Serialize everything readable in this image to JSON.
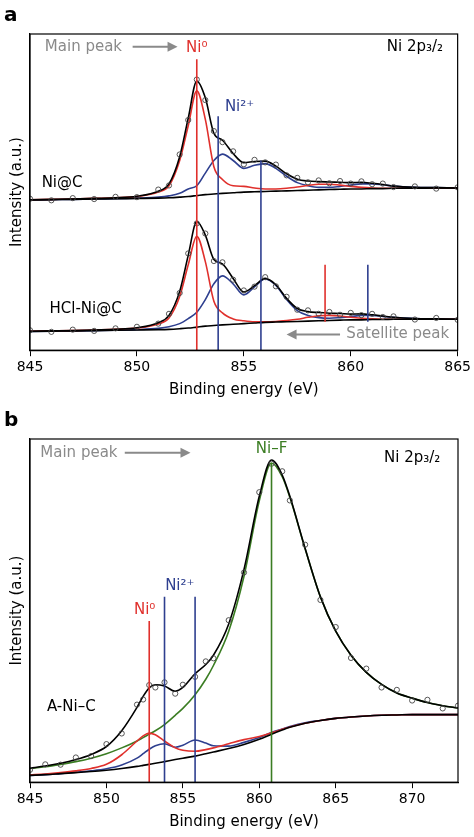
{
  "chart_data": [
    {
      "type": "line",
      "title": "a",
      "x_label": "Binding energy (eV)",
      "y_label": "Intensity (a.u.)",
      "x": [
        845,
        846,
        847,
        848,
        849,
        850,
        851,
        851.5,
        852,
        852.4,
        852.8,
        853.2,
        853.6,
        854,
        854.5,
        855,
        855.5,
        856,
        856.5,
        857,
        857.5,
        858,
        858.5,
        859,
        859.5,
        860,
        860.5,
        861,
        861.5,
        862,
        863,
        864,
        865
      ],
      "xlim": [
        845,
        865
      ],
      "xticks": [
        845,
        850,
        855,
        860,
        865
      ],
      "ylim": [
        0,
        100
      ],
      "tick_labels": "x",
      "grid": false,
      "series": [
        {
          "type": "scatter",
          "marker": "circle",
          "color": "#444444",
          "values": [
            47.9,
            47.4,
            48.1,
            47.8,
            48.5,
            48.4,
            50.8,
            52.1,
            61.9,
            72.8,
            85.6,
            79.1,
            69.3,
            65.8,
            62.9,
            58.8,
            60.2,
            59.4,
            58.7,
            55.3,
            54.5,
            53.1,
            53.7,
            52.8,
            53.5,
            52.7,
            53.4,
            52.5,
            52.7,
            51.6,
            51.8,
            51.1,
            51.5
          ]
        },
        {
          "type": "line",
          "line_style": "solid",
          "color": "#000000",
          "values": [
            47.6,
            47.7,
            47.8,
            48,
            48.2,
            48.7,
            50.3,
            52.6,
            61.2,
            73.4,
            85.1,
            79.8,
            68.6,
            66.4,
            62.2,
            59.3,
            59.7,
            59.8,
            58.2,
            55.8,
            54.1,
            53.5,
            53.3,
            53.2,
            53.1,
            53,
            53.1,
            52.8,
            52.4,
            51.9,
            51.5,
            51.4,
            51.3
          ]
        },
        {
          "type": "line",
          "line_style": "solid",
          "color": "#000000",
          "values": [
            47.5,
            47.6,
            47.7,
            47.8,
            47.9,
            48,
            48.1,
            48.2,
            48.4,
            48.6,
            48.9,
            49.2,
            49.4,
            49.6,
            49.8,
            50,
            50.1,
            50.2,
            50.3,
            50.4,
            50.5,
            50.6,
            50.7,
            50.8,
            50.9,
            51,
            51,
            51.1,
            51.1,
            51.2,
            51.2,
            51.3,
            51.3
          ]
        },
        {
          "type": "line",
          "line_style": "solid",
          "color": "#e0302c",
          "values": [
            47.6,
            47.7,
            47.8,
            48,
            48.2,
            48.6,
            50,
            52,
            60,
            71,
            82,
            73,
            58,
            54,
            52,
            51.8,
            51.3,
            51,
            51,
            51.2,
            51.6,
            52.1,
            52.5,
            52.5,
            52.2,
            51.8,
            51.5,
            51.3,
            51.2,
            51.2,
            51.2,
            51.3,
            51.3
          ]
        },
        {
          "type": "line",
          "line_style": "solid",
          "color": "#2e3f8f",
          "values": [
            47.5,
            47.6,
            47.7,
            47.8,
            47.9,
            48.1,
            48.4,
            48.8,
            49.6,
            51,
            52,
            56,
            60,
            62,
            60,
            57.5,
            58.5,
            59,
            57.5,
            55,
            53,
            52,
            51.5,
            51.5,
            51.8,
            52.2,
            52.6,
            52.6,
            52.3,
            51.9,
            51.5,
            51.4,
            51.3
          ]
        },
        {
          "type": "scatter",
          "marker": "circle",
          "color": "#444444",
          "values": [
            6.3,
            5.8,
            6.5,
            6.1,
            6.9,
            7.4,
            8.4,
            11.5,
            18.1,
            30.6,
            40.1,
            36.9,
            28.2,
            27.8,
            22.3,
            18.9,
            20.1,
            23.1,
            20.2,
            16.9,
            12.8,
            12.6,
            11.5,
            12.1,
            11.2,
            11.8,
            11.1,
            11.5,
            10.5,
            10.7,
            9.7,
            10.2,
            9.6
          ]
        },
        {
          "type": "line",
          "line_style": "solid",
          "color": "#000000",
          "values": [
            6,
            6.1,
            6.2,
            6.4,
            6.6,
            7.1,
            8.7,
            11,
            18.6,
            30,
            40.7,
            36.4,
            28.7,
            27.3,
            22.7,
            18.4,
            20.4,
            22.7,
            20.7,
            16.4,
            13.2,
            12.2,
            11.9,
            11.7,
            11.6,
            11.4,
            11.5,
            11.2,
            10.8,
            10.4,
            10,
            9.9,
            9.8
          ]
        },
        {
          "type": "line",
          "line_style": "solid",
          "color": "#000000",
          "values": [
            5.9,
            6,
            6.1,
            6.2,
            6.3,
            6.4,
            6.5,
            6.6,
            6.8,
            7,
            7.3,
            7.6,
            7.8,
            8,
            8.2,
            8.4,
            8.6,
            8.8,
            8.9,
            9,
            9.1,
            9.2,
            9.3,
            9.4,
            9.5,
            9.6,
            9.6,
            9.7,
            9.7,
            9.8,
            9.8,
            9.8,
            9.8
          ]
        },
        {
          "type": "line",
          "line_style": "solid",
          "color": "#e0302c",
          "values": [
            6,
            6.1,
            6.2,
            6.4,
            6.6,
            7,
            8.3,
            10.2,
            17,
            27,
            36,
            28,
            15.5,
            11.8,
            9.9,
            9.3,
            9,
            9,
            9.1,
            9.4,
            9.8,
            10.4,
            10.9,
            11,
            10.8,
            10.4,
            10.1,
            9.9,
            9.8,
            9.8,
            9.8,
            9.8,
            9.8
          ]
        },
        {
          "type": "line",
          "line_style": "solid",
          "color": "#2e3f8f",
          "values": [
            5.9,
            6,
            6.1,
            6.2,
            6.3,
            6.5,
            6.9,
            7.4,
            8.4,
            10,
            12,
            16,
            21,
            23.5,
            21,
            17.5,
            20,
            22.5,
            20.5,
            16,
            12.5,
            11,
            10.3,
            10.1,
            10.3,
            10.6,
            11,
            11,
            10.7,
            10.4,
            10,
            9.9,
            9.8
          ]
        }
      ],
      "vlines": [
        {
          "x": 852.8,
          "y_from": 0,
          "y_to": 92,
          "color": "#e0302c"
        },
        {
          "x": 853.8,
          "y_from": 0,
          "y_to": 74,
          "color": "#2e3f8f"
        },
        {
          "x": 855.8,
          "y_from": 0,
          "y_to": 60,
          "color": "#2e3f8f"
        },
        {
          "x": 858.8,
          "y_from": 9,
          "y_to": 27,
          "color": "#e0302c"
        },
        {
          "x": 860.8,
          "y_from": 9,
          "y_to": 27,
          "color": "#2e3f8f"
        }
      ],
      "arrows": [
        {
          "x": [
            849.8,
            851.9
          ],
          "y": 96,
          "color": "#8a8a8a"
        },
        {
          "x": [
            859.5,
            857
          ],
          "y": 5,
          "color": "#8a8a8a"
        }
      ],
      "annotations": [
        {
          "text": "Main peak",
          "x": 847.5,
          "y": 96,
          "color": "#8a8a8a"
        },
        {
          "text": "Ni⁰",
          "x": 852.8,
          "y": 95.5,
          "color": "#e0302c"
        },
        {
          "text": "Ni²⁺",
          "x": 854.8,
          "y": 77,
          "color": "#2e3f8f"
        },
        {
          "text": "Ni 2p₃/₂",
          "x": 863,
          "y": 96,
          "color": "#000000"
        },
        {
          "text": "Ni@C",
          "x": 846.5,
          "y": 53,
          "color": "#000000"
        },
        {
          "text": "HCl-Ni@C",
          "x": 847.6,
          "y": 13,
          "color": "#000000"
        },
        {
          "text": "Satellite peak",
          "x": 862.2,
          "y": 5,
          "color": "#8a8a8a"
        }
      ]
    },
    {
      "type": "line",
      "title": "b",
      "x_label": "Binding energy (eV)",
      "y_label": "Intensity (a.u.)",
      "x": [
        845,
        846,
        847,
        848,
        849,
        850,
        851,
        852,
        852.4,
        852.8,
        853.2,
        853.8,
        854.5,
        855,
        855.8,
        856.5,
        857,
        858,
        859,
        860,
        860.8,
        861.5,
        862,
        863,
        864,
        865,
        866,
        867,
        868,
        869,
        870,
        871,
        872,
        873
      ],
      "xlim": [
        845,
        873
      ],
      "xticks": [
        845,
        850,
        855,
        860,
        865,
        870
      ],
      "ylim": [
        0,
        100
      ],
      "tick_labels": "x",
      "grid": false,
      "series": [
        {
          "type": "scatter",
          "marker": "circle",
          "color": "#444444",
          "values": [
            3.6,
            5.2,
            5.1,
            7.2,
            7.6,
            11.1,
            14.2,
            22.6,
            24.1,
            28.3,
            27.6,
            29.1,
            25.8,
            28.4,
            30.7,
            35.2,
            36.1,
            47.2,
            61.1,
            84.5,
            92.8,
            90.6,
            82.1,
            69.2,
            53.1,
            45.2,
            36.2,
            33.1,
            27.6,
            26.9,
            23.8,
            24,
            21.5,
            22.3
          ]
        },
        {
          "type": "line",
          "line_style": "solid",
          "color": "#000000",
          "values": [
            4.1,
            4.7,
            5.5,
            6.6,
            8.1,
            10.4,
            15,
            21.8,
            25,
            27.5,
            28.4,
            28,
            26.5,
            27.6,
            31.6,
            34.3,
            37,
            46.1,
            62,
            83.3,
            93.9,
            89.5,
            83.3,
            68.1,
            54,
            44,
            37,
            32,
            28.5,
            26,
            24.5,
            23.2,
            22.3,
            21.6
          ]
        },
        {
          "type": "line",
          "line_style": "solid",
          "color": "#000000",
          "values": [
            2,
            2.2,
            2.5,
            2.8,
            3.1,
            3.5,
            4,
            4.6,
            4.9,
            5.2,
            5.5,
            6,
            6.6,
            7,
            7.6,
            8.3,
            8.8,
            9.8,
            11,
            12.5,
            14,
            15.2,
            16,
            17.2,
            18,
            18.6,
            19,
            19.3,
            19.5,
            19.6,
            19.7,
            19.7,
            19.7,
            19.7
          ]
        },
        {
          "type": "line",
          "line_style": "solid",
          "color": "#e0302c",
          "values": [
            2.1,
            2.4,
            2.8,
            3.3,
            4,
            5.2,
            8,
            12,
            13.5,
            14.3,
            13.8,
            12,
            10,
            9.3,
            9,
            9.5,
            10,
            11.2,
            12.4,
            13.3,
            14.4,
            15.4,
            16.1,
            17.2,
            18,
            18.6,
            19,
            19.3,
            19.5,
            19.6,
            19.7,
            19.7,
            19.7,
            19.7
          ]
        },
        {
          "type": "line",
          "line_style": "solid",
          "color": "#2e3f8f",
          "values": [
            2,
            2.2,
            2.5,
            2.9,
            3.3,
            3.9,
            5,
            7,
            8.3,
            9.6,
            10.6,
            11.2,
            10.2,
            10.8,
            12.3,
            11.4,
            10.6,
            10.5,
            11.6,
            13,
            14.5,
            15.5,
            16.2,
            17.3,
            18,
            18.6,
            19,
            19.3,
            19.5,
            19.6,
            19.7,
            19.7,
            19.7,
            19.7
          ]
        },
        {
          "type": "line",
          "line_style": "solid",
          "color": "#3b7d23",
          "values": [
            4,
            4.5,
            5.2,
            6,
            7,
            8.3,
            10,
            12,
            13,
            14,
            15,
            16.8,
            19.5,
            21.5,
            25.5,
            30,
            34,
            44,
            60,
            82,
            93,
            89,
            83,
            68,
            54,
            44,
            37,
            32,
            28.5,
            26,
            24.5,
            23.2,
            22.3,
            21.6
          ]
        }
      ],
      "vlines": [
        {
          "x": 852.8,
          "y_from": 0,
          "y_to": 47,
          "color": "#e0302c"
        },
        {
          "x": 853.8,
          "y_from": 0,
          "y_to": 54,
          "color": "#2e3f8f"
        },
        {
          "x": 855.8,
          "y_from": 0,
          "y_to": 54,
          "color": "#2e3f8f"
        },
        {
          "x": 860.8,
          "y_from": 0,
          "y_to": 93,
          "color": "#3b7d23"
        }
      ],
      "arrows": [
        {
          "x": [
            851.2,
            855.5
          ],
          "y": 96,
          "color": "#8a8a8a"
        }
      ],
      "annotations": [
        {
          "text": "Main peak",
          "x": 848.2,
          "y": 96,
          "color": "#8a8a8a"
        },
        {
          "text": "Ni⁰",
          "x": 852.5,
          "y": 50,
          "color": "#e0302c"
        },
        {
          "text": "Ni²⁺",
          "x": 854.8,
          "y": 57,
          "color": "#2e3f8f"
        },
        {
          "text": "Ni–F",
          "x": 860.8,
          "y": 97,
          "color": "#3b7d23"
        },
        {
          "text": "Ni 2p₃/₂",
          "x": 870,
          "y": 94.5,
          "color": "#000000"
        },
        {
          "text": "A-Ni–C",
          "x": 847.7,
          "y": 22,
          "color": "#000000"
        }
      ]
    }
  ]
}
